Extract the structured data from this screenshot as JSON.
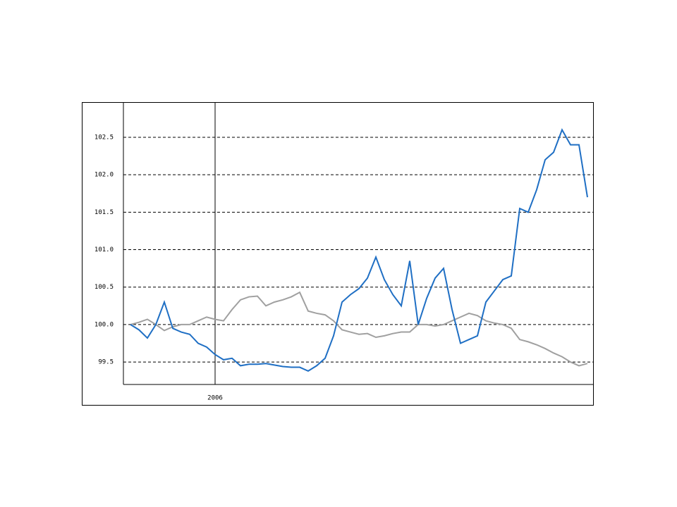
{
  "chart_data": {
    "type": "line",
    "categories": [
      null,
      null,
      null,
      null,
      null,
      null,
      null,
      null,
      null,
      null,
      "2006",
      null,
      null,
      null,
      null,
      null,
      null,
      null,
      null,
      null,
      null,
      null,
      null,
      null,
      null,
      null,
      null,
      null,
      null,
      null,
      null,
      null,
      null,
      null,
      null,
      null,
      null,
      null,
      null,
      null,
      null,
      null,
      null,
      null,
      null,
      null,
      null,
      null,
      null,
      null,
      null,
      null,
      null,
      null,
      null
    ],
    "series": [
      {
        "color": "#1f6fc4",
        "values": [
          100.0,
          99.93,
          99.82,
          100.0,
          100.3,
          99.95,
          99.9,
          99.87,
          99.75,
          99.7,
          99.6,
          99.53,
          99.55,
          99.45,
          99.47,
          99.47,
          99.48,
          99.46,
          99.44,
          99.43,
          99.43,
          99.38,
          99.45,
          99.55,
          99.85,
          100.3,
          100.4,
          100.48,
          100.62,
          100.9,
          100.6,
          100.4,
          100.25,
          100.85,
          100.0,
          100.35,
          100.62,
          100.75,
          100.2,
          99.75,
          99.8,
          99.85,
          100.3,
          100.45,
          100.6,
          100.65,
          101.55,
          101.5,
          101.8,
          102.2,
          102.3,
          102.6,
          102.4,
          102.4,
          101.7
        ]
      },
      {
        "color": "#a0a0a0",
        "values": [
          100.0,
          100.03,
          100.07,
          100.0,
          99.92,
          99.97,
          100.0,
          100.0,
          100.05,
          100.1,
          100.07,
          100.05,
          100.2,
          100.33,
          100.37,
          100.38,
          100.25,
          100.3,
          100.33,
          100.37,
          100.43,
          100.18,
          100.15,
          100.13,
          100.05,
          99.93,
          99.9,
          99.87,
          99.88,
          99.83,
          99.85,
          99.88,
          99.9,
          99.9,
          100.0,
          100.0,
          99.98,
          100.0,
          100.05,
          100.1,
          100.15,
          100.12,
          100.05,
          100.02,
          100.0,
          99.95,
          99.8,
          99.77,
          99.73,
          99.68,
          99.62,
          99.57,
          99.5,
          99.45,
          99.48
        ]
      }
    ],
    "ylim": [
      99.2,
      102.97
    ],
    "yticks": [
      99.5,
      {
        "value": 100,
        "label": "100.0"
      },
      100.5,
      {
        "value": 101,
        "label": "101.0"
      },
      101.5,
      {
        "value": 102,
        "label": "102.0"
      },
      102.5
    ],
    "grid": true
  }
}
